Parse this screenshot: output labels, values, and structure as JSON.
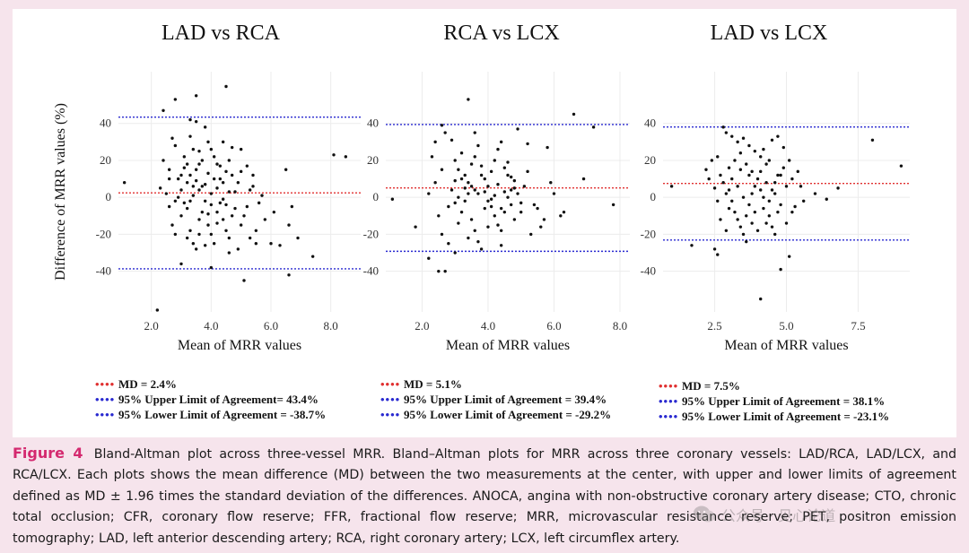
{
  "colors": {
    "md_line": "#e03030",
    "limit_line": "#2a2ad0",
    "point": "#111111",
    "caption_accent": "#d4296f",
    "background": "#f6e4ec"
  },
  "chart_data": [
    {
      "type": "scatter",
      "title": "LAD vs RCA",
      "xlabel": "Mean of MRR values",
      "ylabel": "Difference of MRR values (%)",
      "xlim": [
        0.9,
        9.0
      ],
      "ylim": [
        -62,
        68
      ],
      "xticks": [
        2.0,
        4.0,
        6.0,
        8.0
      ],
      "xtick_labels": [
        "2.0",
        "4.0",
        "6.0",
        "8.0"
      ],
      "yticks": [
        -40,
        -20,
        0,
        20,
        40
      ],
      "ytick_labels": [
        "-40",
        "-20",
        "0",
        "20",
        "40"
      ],
      "md": 2.4,
      "upper": 43.4,
      "lower": -38.7,
      "legend": [
        "MD = 2.4%",
        "95% Upper Limit of Agreement= 43.4%",
        "95% Lower Limit of Agreement = -38.7%"
      ],
      "points": [
        [
          1.1,
          8
        ],
        [
          2.2,
          -61
        ],
        [
          2.4,
          47
        ],
        [
          2.8,
          53
        ],
        [
          3.5,
          55
        ],
        [
          4.5,
          60
        ],
        [
          3.3,
          42
        ],
        [
          3.5,
          41
        ],
        [
          2.7,
          32
        ],
        [
          2.8,
          28
        ],
        [
          2.4,
          20
        ],
        [
          2.6,
          15
        ],
        [
          2.9,
          10
        ],
        [
          3.1,
          22
        ],
        [
          3.2,
          18
        ],
        [
          3.3,
          12
        ],
        [
          3.4,
          6
        ],
        [
          3.5,
          15
        ],
        [
          3.6,
          25
        ],
        [
          3.7,
          20
        ],
        [
          3.8,
          38
        ],
        [
          3.9,
          30
        ],
        [
          4.0,
          26
        ],
        [
          4.1,
          22
        ],
        [
          4.2,
          18
        ],
        [
          4.3,
          10
        ],
        [
          4.4,
          8
        ],
        [
          4.5,
          14
        ],
        [
          4.6,
          20
        ],
        [
          4.7,
          27
        ],
        [
          4.8,
          3
        ],
        [
          5.0,
          26
        ],
        [
          5.2,
          17
        ],
        [
          5.4,
          12
        ],
        [
          5.6,
          -3
        ],
        [
          5.8,
          -12
        ],
        [
          6.0,
          -25
        ],
        [
          6.3,
          -26
        ],
        [
          6.5,
          15
        ],
        [
          6.6,
          -15
        ],
        [
          6.7,
          -5
        ],
        [
          6.9,
          -22
        ],
        [
          7.4,
          -32
        ],
        [
          6.6,
          -42
        ],
        [
          8.1,
          23
        ],
        [
          8.5,
          22
        ],
        [
          5.1,
          -45
        ],
        [
          3.0,
          -36
        ],
        [
          4.0,
          -38
        ],
        [
          2.6,
          -5
        ],
        [
          2.7,
          -15
        ],
        [
          2.8,
          -20
        ],
        [
          3.0,
          -10
        ],
        [
          3.1,
          -3
        ],
        [
          3.2,
          -22
        ],
        [
          3.3,
          -18
        ],
        [
          3.4,
          -25
        ],
        [
          3.5,
          -28
        ],
        [
          3.6,
          -12
        ],
        [
          3.7,
          -8
        ],
        [
          3.8,
          -2
        ],
        [
          3.9,
          -15
        ],
        [
          4.0,
          -20
        ],
        [
          4.1,
          -25
        ],
        [
          4.2,
          -8
        ],
        [
          4.3,
          -3
        ],
        [
          4.4,
          -12
        ],
        [
          4.5,
          -18
        ],
        [
          4.6,
          -30
        ],
        [
          4.7,
          -10
        ],
        [
          4.9,
          -28
        ],
        [
          5.0,
          -15
        ],
        [
          5.2,
          -5
        ],
        [
          5.3,
          -22
        ],
        [
          5.5,
          -25
        ],
        [
          3.0,
          4
        ],
        [
          3.2,
          8
        ],
        [
          3.4,
          1
        ],
        [
          3.6,
          4
        ],
        [
          3.8,
          7
        ],
        [
          4.0,
          2
        ],
        [
          4.2,
          5
        ],
        [
          4.4,
          -1
        ],
        [
          4.6,
          3
        ],
        [
          2.5,
          2
        ],
        [
          2.9,
          0
        ],
        [
          3.3,
          -2
        ],
        [
          3.7,
          6
        ],
        [
          4.1,
          10
        ],
        [
          4.5,
          -4
        ],
        [
          4.9,
          8
        ],
        [
          5.3,
          4
        ],
        [
          5.7,
          1
        ],
        [
          6.1,
          -8
        ],
        [
          3.1,
          16
        ],
        [
          3.5,
          9
        ],
        [
          3.9,
          13
        ],
        [
          4.3,
          17
        ],
        [
          4.7,
          12
        ],
        [
          5.1,
          -10
        ],
        [
          5.5,
          -18
        ],
        [
          2.6,
          10
        ],
        [
          3.4,
          26
        ],
        [
          3.6,
          -20
        ],
        [
          4.8,
          -6
        ],
        [
          2.3,
          5
        ],
        [
          3.0,
          12
        ],
        [
          3.8,
          -26
        ],
        [
          4.2,
          -14
        ],
        [
          4.6,
          -22
        ],
        [
          5.0,
          14
        ],
        [
          5.4,
          6
        ],
        [
          3.2,
          -6
        ],
        [
          3.6,
          18
        ],
        [
          4.0,
          -4
        ],
        [
          4.4,
          30
        ],
        [
          2.8,
          -2
        ],
        [
          3.3,
          33
        ],
        [
          3.9,
          -9
        ]
      ]
    },
    {
      "type": "scatter",
      "title": "RCA vs LCX",
      "xlabel": "Mean of MRR values",
      "ylabel": "",
      "xlim": [
        0.9,
        8.3
      ],
      "ylim": [
        -62,
        68
      ],
      "xticks": [
        2.0,
        4.0,
        6.0,
        8.0
      ],
      "xtick_labels": [
        "2.0",
        "4.0",
        "6.0",
        "8.0"
      ],
      "yticks": [
        -40,
        -20,
        0,
        20,
        40
      ],
      "ytick_labels": [
        "-40",
        "-20",
        "0",
        "20",
        "40"
      ],
      "md": 5.1,
      "upper": 39.4,
      "lower": -29.2,
      "legend": [
        "MD = 5.1%",
        "95% Upper Limit of Agreement = 39.4%",
        "95% Lower Limit of Agreement = -29.2%"
      ],
      "points": [
        [
          1.1,
          -1
        ],
        [
          1.8,
          -16
        ],
        [
          2.2,
          -33
        ],
        [
          2.5,
          -40
        ],
        [
          2.7,
          -40
        ],
        [
          3.4,
          53
        ],
        [
          6.6,
          45
        ],
        [
          7.2,
          38
        ],
        [
          7.8,
          -4
        ],
        [
          6.2,
          -10
        ],
        [
          5.8,
          27
        ],
        [
          5.2,
          29
        ],
        [
          4.9,
          37
        ],
        [
          2.3,
          22
        ],
        [
          2.4,
          30
        ],
        [
          2.6,
          39
        ],
        [
          2.7,
          35
        ],
        [
          2.9,
          31
        ],
        [
          3.0,
          20
        ],
        [
          3.1,
          15
        ],
        [
          3.2,
          10
        ],
        [
          3.3,
          5
        ],
        [
          3.4,
          8
        ],
        [
          3.5,
          18
        ],
        [
          3.6,
          22
        ],
        [
          3.7,
          28
        ],
        [
          3.8,
          12
        ],
        [
          3.9,
          3
        ],
        [
          4.0,
          -2
        ],
        [
          4.1,
          -5
        ],
        [
          4.2,
          -10
        ],
        [
          4.3,
          -15
        ],
        [
          4.4,
          -18
        ],
        [
          4.5,
          -8
        ],
        [
          4.6,
          0
        ],
        [
          4.7,
          4
        ],
        [
          4.8,
          9
        ],
        [
          5.0,
          -3
        ],
        [
          5.3,
          -20
        ],
        [
          5.6,
          -16
        ],
        [
          5.9,
          8
        ],
        [
          6.3,
          -8
        ],
        [
          6.9,
          10
        ],
        [
          2.5,
          -10
        ],
        [
          2.6,
          -20
        ],
        [
          2.8,
          -25
        ],
        [
          3.0,
          -30
        ],
        [
          3.1,
          -14
        ],
        [
          3.2,
          -8
        ],
        [
          3.3,
          -2
        ],
        [
          3.4,
          2
        ],
        [
          3.5,
          -12
        ],
        [
          3.6,
          -18
        ],
        [
          3.7,
          -24
        ],
        [
          3.8,
          -28
        ],
        [
          3.9,
          -6
        ],
        [
          4.0,
          6
        ],
        [
          4.1,
          14
        ],
        [
          4.2,
          20
        ],
        [
          4.3,
          26
        ],
        [
          4.4,
          30
        ],
        [
          4.5,
          16
        ],
        [
          4.6,
          12
        ],
        [
          4.7,
          -4
        ],
        [
          4.8,
          -12
        ],
        [
          4.9,
          2
        ],
        [
          5.1,
          6
        ],
        [
          5.4,
          -4
        ],
        [
          5.7,
          -12
        ],
        [
          6.0,
          2
        ],
        [
          2.9,
          4
        ],
        [
          3.1,
          0
        ],
        [
          3.3,
          12
        ],
        [
          3.5,
          6
        ],
        [
          3.7,
          2
        ],
        [
          3.9,
          10
        ],
        [
          4.1,
          -1
        ],
        [
          4.3,
          7
        ],
        [
          4.5,
          3
        ],
        [
          4.7,
          11
        ],
        [
          2.2,
          2
        ],
        [
          2.4,
          8
        ],
        [
          2.6,
          15
        ],
        [
          2.8,
          -5
        ],
        [
          3.0,
          9
        ],
        [
          3.2,
          24
        ],
        [
          3.4,
          -22
        ],
        [
          3.6,
          4
        ],
        [
          3.8,
          17
        ],
        [
          4.0,
          -16
        ],
        [
          4.2,
          1
        ],
        [
          4.4,
          -26
        ],
        [
          4.6,
          19
        ],
        [
          4.8,
          5
        ],
        [
          5.0,
          -8
        ],
        [
          5.2,
          14
        ],
        [
          5.5,
          -6
        ],
        [
          3.0,
          -3
        ],
        [
          3.6,
          35
        ],
        [
          4.4,
          -6
        ]
      ]
    },
    {
      "type": "scatter",
      "title": "LAD vs LCX",
      "xlabel": "Mean of MRR values",
      "ylabel": "",
      "xlim": [
        0.7,
        9.3
      ],
      "ylim": [
        -62,
        68
      ],
      "xticks": [
        2.5,
        5.0,
        7.5
      ],
      "xtick_labels": [
        "2.5",
        "5.0",
        "7.5"
      ],
      "yticks": [
        -40,
        -20,
        0,
        20,
        40
      ],
      "ytick_labels": [
        "-40",
        "-20",
        "0",
        "20",
        "40"
      ],
      "md": 7.5,
      "upper": 38.1,
      "lower": -23.1,
      "legend": [
        "MD = 7.5%",
        "95% Upper Limit of Agreement = 38.1%",
        "95% Lower Limit of Agreement = -23.1%"
      ],
      "points": [
        [
          1.0,
          6
        ],
        [
          1.7,
          -26
        ],
        [
          2.5,
          -28
        ],
        [
          2.6,
          -31
        ],
        [
          4.1,
          -55
        ],
        [
          4.8,
          -39
        ],
        [
          5.1,
          -32
        ],
        [
          8.0,
          31
        ],
        [
          9.0,
          17
        ],
        [
          6.4,
          -1
        ],
        [
          6.0,
          2
        ],
        [
          5.5,
          6
        ],
        [
          5.3,
          -5
        ],
        [
          2.8,
          38
        ],
        [
          2.9,
          35
        ],
        [
          3.1,
          33
        ],
        [
          3.3,
          30
        ],
        [
          3.5,
          32
        ],
        [
          3.7,
          28
        ],
        [
          3.9,
          25
        ],
        [
          4.1,
          22
        ],
        [
          4.3,
          18
        ],
        [
          4.5,
          31
        ],
        [
          4.7,
          33
        ],
        [
          4.9,
          27
        ],
        [
          5.1,
          20
        ],
        [
          5.2,
          10
        ],
        [
          2.2,
          15
        ],
        [
          2.4,
          20
        ],
        [
          2.6,
          22
        ],
        [
          2.7,
          12
        ],
        [
          2.8,
          8
        ],
        [
          3.0,
          4
        ],
        [
          3.1,
          -2
        ],
        [
          3.2,
          -8
        ],
        [
          3.3,
          -12
        ],
        [
          3.4,
          -16
        ],
        [
          3.5,
          -20
        ],
        [
          3.6,
          -10
        ],
        [
          3.7,
          -4
        ],
        [
          3.8,
          2
        ],
        [
          3.9,
          6
        ],
        [
          4.0,
          10
        ],
        [
          4.1,
          14
        ],
        [
          4.2,
          -6
        ],
        [
          4.3,
          -14
        ],
        [
          4.4,
          -2
        ],
        [
          4.5,
          4
        ],
        [
          4.6,
          8
        ],
        [
          4.7,
          -8
        ],
        [
          4.8,
          12
        ],
        [
          4.9,
          16
        ],
        [
          5.0,
          -14
        ],
        [
          5.4,
          14
        ],
        [
          2.5,
          5
        ],
        [
          2.7,
          -12
        ],
        [
          2.9,
          -18
        ],
        [
          3.0,
          16
        ],
        [
          3.2,
          20
        ],
        [
          3.4,
          24
        ],
        [
          3.6,
          18
        ],
        [
          3.8,
          14
        ],
        [
          4.0,
          -18
        ],
        [
          4.2,
          0
        ],
        [
          4.4,
          -10
        ],
        [
          4.6,
          2
        ],
        [
          4.8,
          -4
        ],
        [
          5.0,
          6
        ],
        [
          2.3,
          10
        ],
        [
          2.6,
          -2
        ],
        [
          3.1,
          10
        ],
        [
          3.3,
          6
        ],
        [
          3.5,
          0
        ],
        [
          3.7,
          12
        ],
        [
          3.9,
          -8
        ],
        [
          4.1,
          4
        ],
        [
          4.3,
          8
        ],
        [
          4.5,
          -16
        ],
        [
          4.7,
          12
        ],
        [
          5.2,
          -8
        ],
        [
          2.9,
          2
        ],
        [
          3.4,
          15
        ],
        [
          3.8,
          -14
        ],
        [
          4.2,
          26
        ],
        [
          4.6,
          -20
        ],
        [
          3.0,
          -6
        ],
        [
          3.6,
          -24
        ],
        [
          4.4,
          20
        ],
        [
          5.6,
          -2
        ],
        [
          6.8,
          5
        ]
      ]
    }
  ],
  "caption": {
    "label": "Figure 4",
    "text": "Bland-Altman plot across three-vessel MRR. Bland–Altman plots for MRR across three coronary vessels: LAD/RCA, LAD/LCX, and RCA/LCX. Each plots shows the mean difference (MD) between the two measurements at the center, with upper and lower limits of agreement defined as MD ± 1.96 times the standard deviation of the differences. ANOCA, angina with non-obstructive coronary artery disease; CTO, chronic total occlusion; CFR, coronary flow reserve; FFR, fractional flow reserve; MRR, microvascular resistance reserve; PET, positron emission tomography; LAD, left anterior descending artery; RCA, right coronary artery; LCX, left circumflex artery."
  },
  "legend_swatch": "••••",
  "watermark": {
    "icon": "wechat-icon",
    "text": "公众号 · 见心论道"
  }
}
